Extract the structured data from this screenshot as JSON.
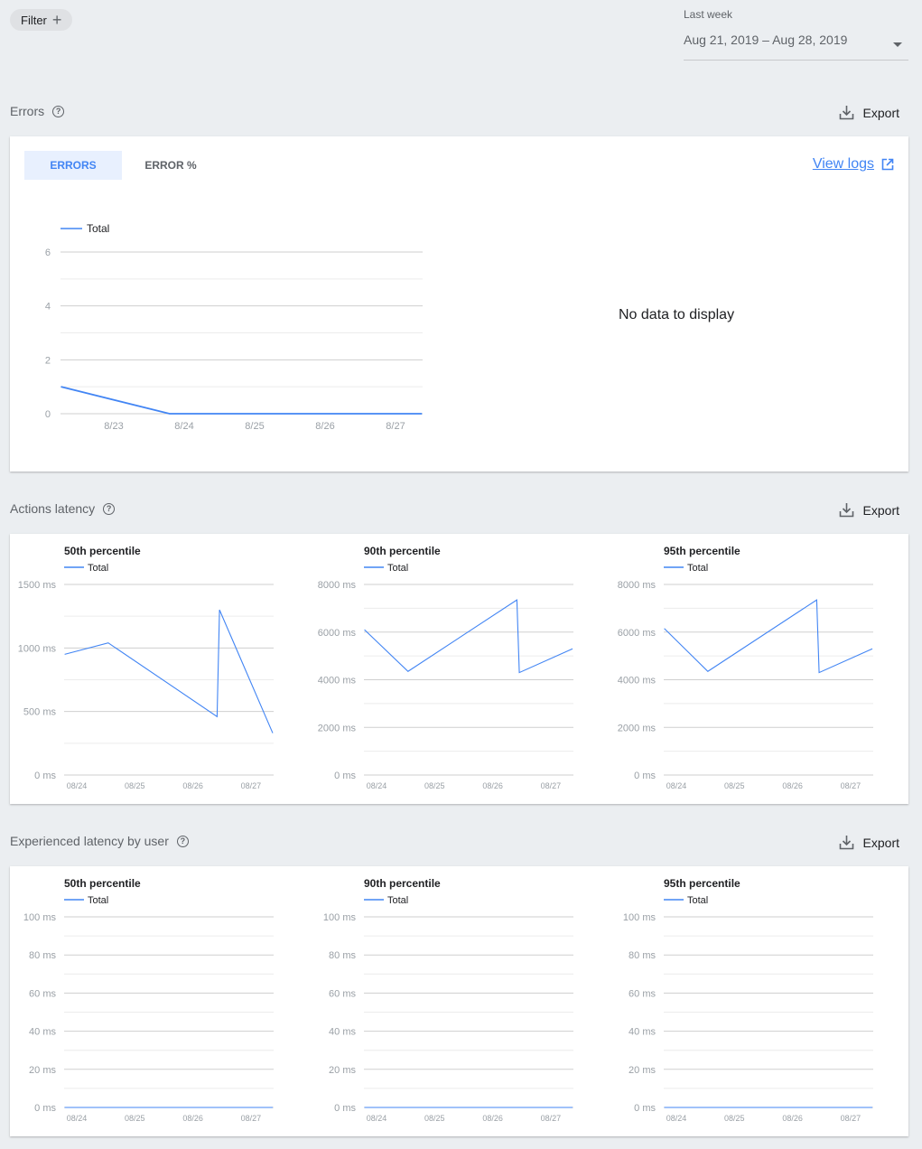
{
  "filter": {
    "label": "Filter",
    "icon": "plus-icon"
  },
  "date_range": {
    "label": "Last week",
    "value": "Aug 21, 2019 – Aug 28, 2019",
    "icon": "caret-down-icon"
  },
  "colors": {
    "accent": "#4285f4",
    "background": "#ebeef1",
    "grid": "#e0e0e0"
  },
  "errors": {
    "title": "Errors",
    "export_label": "Export",
    "tabs": [
      {
        "label": "ERRORS",
        "active": true
      },
      {
        "label": "ERROR %",
        "active": false
      }
    ],
    "view_logs": "View logs",
    "no_data": "No data to display"
  },
  "actions_latency": {
    "title": "Actions latency",
    "export_label": "Export"
  },
  "experienced_latency": {
    "title": "Experienced latency by user",
    "export_label": "Export"
  },
  "chart_data": [
    {
      "id": "errors",
      "type": "line",
      "title": "",
      "legend": [
        "Total"
      ],
      "ylim": [
        0,
        6
      ],
      "yticks": [
        {
          "v": 0,
          "label": "0"
        },
        {
          "v": 2,
          "label": "2"
        },
        {
          "v": 4,
          "label": "4"
        },
        {
          "v": 6,
          "label": "6"
        }
      ],
      "minor_step": 1,
      "xticks": [
        {
          "t": "2019-08-23T00:00",
          "label": "8/23"
        },
        {
          "t": "2019-08-24T00:00",
          "label": "8/24"
        },
        {
          "t": "2019-08-25T00:00",
          "label": "8/25"
        },
        {
          "t": "2019-08-26T00:00",
          "label": "8/26"
        },
        {
          "t": "2019-08-27T00:00",
          "label": "8/27"
        }
      ],
      "series": [
        {
          "name": "Total",
          "points": [
            [
              "2019-08-22T06:00",
              1
            ],
            [
              "2019-08-23T19:00",
              0
            ],
            [
              "2019-08-27T09:00",
              0
            ]
          ]
        }
      ]
    },
    {
      "id": "al50",
      "type": "line",
      "title": "50th percentile",
      "legend": [
        "Total"
      ],
      "ylim": [
        0,
        1500
      ],
      "yticks": [
        {
          "v": 0,
          "label": "0 ms"
        },
        {
          "v": 500,
          "label": "500 ms"
        },
        {
          "v": 1000,
          "label": "1000 ms"
        },
        {
          "v": 1500,
          "label": "1500 ms"
        }
      ],
      "minor_step": 250,
      "xticks": [
        {
          "t": "2019-08-24T00:00",
          "label": "08/24"
        },
        {
          "t": "2019-08-25T00:00",
          "label": "08/25"
        },
        {
          "t": "2019-08-26T00:00",
          "label": "08/26"
        },
        {
          "t": "2019-08-27T00:00",
          "label": "08/27"
        }
      ],
      "series": [
        {
          "name": "Total",
          "points": [
            [
              "2019-08-23T19:00",
              950
            ],
            [
              "2019-08-24T13:00",
              1040
            ],
            [
              "2019-08-26T10:00",
              460
            ],
            [
              "2019-08-26T11:00",
              1300
            ],
            [
              "2019-08-27T09:00",
              330
            ]
          ]
        }
      ]
    },
    {
      "id": "al90",
      "type": "line",
      "title": "90th percentile",
      "legend": [
        "Total"
      ],
      "ylim": [
        0,
        8000
      ],
      "yticks": [
        {
          "v": 0,
          "label": "0 ms"
        },
        {
          "v": 2000,
          "label": "2000 ms"
        },
        {
          "v": 4000,
          "label": "4000 ms"
        },
        {
          "v": 6000,
          "label": "6000 ms"
        },
        {
          "v": 8000,
          "label": "8000 ms"
        }
      ],
      "minor_step": 1000,
      "xticks": [
        {
          "t": "2019-08-24T00:00",
          "label": "08/24"
        },
        {
          "t": "2019-08-25T00:00",
          "label": "08/25"
        },
        {
          "t": "2019-08-26T00:00",
          "label": "08/26"
        },
        {
          "t": "2019-08-27T00:00",
          "label": "08/27"
        }
      ],
      "series": [
        {
          "name": "Total",
          "points": [
            [
              "2019-08-23T19:00",
              6100
            ],
            [
              "2019-08-24T13:00",
              4350
            ],
            [
              "2019-08-26T10:00",
              7350
            ],
            [
              "2019-08-26T11:00",
              4300
            ],
            [
              "2019-08-27T09:00",
              5300
            ]
          ]
        }
      ]
    },
    {
      "id": "al95",
      "type": "line",
      "title": "95th percentile",
      "legend": [
        "Total"
      ],
      "ylim": [
        0,
        8000
      ],
      "yticks": [
        {
          "v": 0,
          "label": "0 ms"
        },
        {
          "v": 2000,
          "label": "2000 ms"
        },
        {
          "v": 4000,
          "label": "4000 ms"
        },
        {
          "v": 6000,
          "label": "6000 ms"
        },
        {
          "v": 8000,
          "label": "8000 ms"
        }
      ],
      "minor_step": 1000,
      "xticks": [
        {
          "t": "2019-08-24T00:00",
          "label": "08/24"
        },
        {
          "t": "2019-08-25T00:00",
          "label": "08/25"
        },
        {
          "t": "2019-08-26T00:00",
          "label": "08/26"
        },
        {
          "t": "2019-08-27T00:00",
          "label": "08/27"
        }
      ],
      "series": [
        {
          "name": "Total",
          "points": [
            [
              "2019-08-23T19:00",
              6150
            ],
            [
              "2019-08-24T13:00",
              4350
            ],
            [
              "2019-08-26T10:00",
              7350
            ],
            [
              "2019-08-26T11:00",
              4300
            ],
            [
              "2019-08-27T09:00",
              5300
            ]
          ]
        }
      ]
    },
    {
      "id": "el50",
      "type": "line",
      "title": "50th percentile",
      "legend": [
        "Total"
      ],
      "ylim": [
        0,
        100
      ],
      "yticks": [
        {
          "v": 0,
          "label": "0 ms"
        },
        {
          "v": 20,
          "label": "20 ms"
        },
        {
          "v": 40,
          "label": "40 ms"
        },
        {
          "v": 60,
          "label": "60 ms"
        },
        {
          "v": 80,
          "label": "80 ms"
        },
        {
          "v": 100,
          "label": "100 ms"
        }
      ],
      "minor_step": 10,
      "xticks": [
        {
          "t": "2019-08-24T00:00",
          "label": "08/24"
        },
        {
          "t": "2019-08-25T00:00",
          "label": "08/25"
        },
        {
          "t": "2019-08-26T00:00",
          "label": "08/26"
        },
        {
          "t": "2019-08-27T00:00",
          "label": "08/27"
        }
      ],
      "series": [
        {
          "name": "Total",
          "points": [
            [
              "2019-08-23T19:00",
              0
            ],
            [
              "2019-08-27T09:00",
              0
            ]
          ]
        }
      ]
    },
    {
      "id": "el90",
      "type": "line",
      "title": "90th percentile",
      "legend": [
        "Total"
      ],
      "ylim": [
        0,
        100
      ],
      "yticks": [
        {
          "v": 0,
          "label": "0 ms"
        },
        {
          "v": 20,
          "label": "20 ms"
        },
        {
          "v": 40,
          "label": "40 ms"
        },
        {
          "v": 60,
          "label": "60 ms"
        },
        {
          "v": 80,
          "label": "80 ms"
        },
        {
          "v": 100,
          "label": "100 ms"
        }
      ],
      "minor_step": 10,
      "xticks": [
        {
          "t": "2019-08-24T00:00",
          "label": "08/24"
        },
        {
          "t": "2019-08-25T00:00",
          "label": "08/25"
        },
        {
          "t": "2019-08-26T00:00",
          "label": "08/26"
        },
        {
          "t": "2019-08-27T00:00",
          "label": "08/27"
        }
      ],
      "series": [
        {
          "name": "Total",
          "points": [
            [
              "2019-08-23T19:00",
              0
            ],
            [
              "2019-08-27T09:00",
              0
            ]
          ]
        }
      ]
    },
    {
      "id": "el95",
      "type": "line",
      "title": "95th percentile",
      "legend": [
        "Total"
      ],
      "ylim": [
        0,
        100
      ],
      "yticks": [
        {
          "v": 0,
          "label": "0 ms"
        },
        {
          "v": 20,
          "label": "20 ms"
        },
        {
          "v": 40,
          "label": "40 ms"
        },
        {
          "v": 60,
          "label": "60 ms"
        },
        {
          "v": 80,
          "label": "80 ms"
        },
        {
          "v": 100,
          "label": "100 ms"
        }
      ],
      "minor_step": 10,
      "xticks": [
        {
          "t": "2019-08-24T00:00",
          "label": "08/24"
        },
        {
          "t": "2019-08-25T00:00",
          "label": "08/25"
        },
        {
          "t": "2019-08-26T00:00",
          "label": "08/26"
        },
        {
          "t": "2019-08-27T00:00",
          "label": "08/27"
        }
      ],
      "series": [
        {
          "name": "Total",
          "points": [
            [
              "2019-08-23T19:00",
              0
            ],
            [
              "2019-08-27T09:00",
              0
            ]
          ]
        }
      ]
    }
  ]
}
